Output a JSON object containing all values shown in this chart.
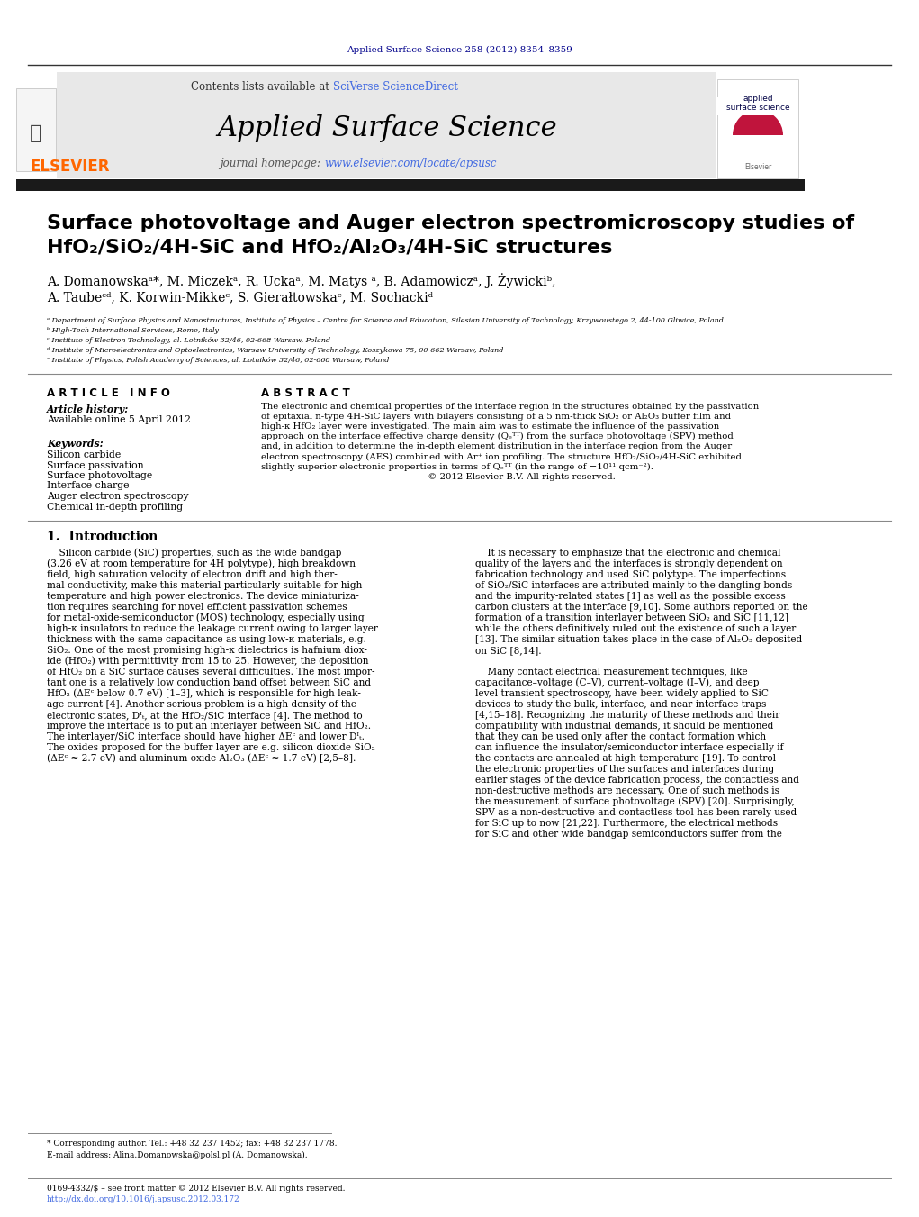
{
  "page_width": 10.21,
  "page_height": 13.51,
  "background_color": "#ffffff",
  "header_top_text": "Applied Surface Science 258 (2012) 8354–8359",
  "header_top_color": "#00008B",
  "journal_header_bg": "#e8e8e8",
  "journal_name": "Applied Surface Science",
  "contents_text": "Contents lists available at SciVerse ScienceDirect",
  "homepage_text": "journal homepage: www.elsevier.com/locate/apsusc",
  "sciverse_color": "#4169E1",
  "homepage_link_color": "#4169E1",
  "elsevier_orange": "#FF6600",
  "dark_bar_color": "#1a1a1a",
  "title_line1": "Surface photovoltage and Auger electron spectromicroscopy studies of",
  "title_line2": "HfO₂/SiO₂/4H-SiC and HfO₂/Al₂O₃/4H-SiC structures",
  "authors": "A. Domanowskaᵃ*, M. Miczekᵃ, R. Uckaᵃ, M. Matys ᵃ, B. Adamowiczᵃ, J. Żywickiᵇ,",
  "authors2": "A. Taubeᶜᵈ, K. Korwin-Mikkeᶜ, S. Gierałtowskaᵉ, M. Sochackiᵈ",
  "affil_a": "ᵃ Department of Surface Physics and Nanostructures, Institute of Physics – Centre for Science and Education, Silesian University of Technology, Krzywoustego 2, 44-100 Gliwice, Poland",
  "affil_b": "ᵇ High-Tech International Services, Rome, Italy",
  "affil_c": "ᶜ Institute of Electron Technology, al. Lotników 32/46, 02-668 Warsaw, Poland",
  "affil_d": "ᵈ Institute of Microelectronics and Optoelectronics, Warsaw University of Technology, Koszykowa 75, 00-662 Warsaw, Poland",
  "affil_e": "ᵉ Institute of Physics, Polish Academy of Sciences, al. Lotników 32/46, 02-668 Warsaw, Poland",
  "article_info_header": "A R T I C L E   I N F O",
  "abstract_header": "A B S T R A C T",
  "article_history_label": "Article history:",
  "article_history_date": "Available online 5 April 2012",
  "keywords_label": "Keywords:",
  "keywords": [
    "Silicon carbide",
    "Surface passivation",
    "Surface photovoltage",
    "Interface charge",
    "Auger electron spectroscopy",
    "Chemical in-depth profiling"
  ],
  "intro_header": "1.  Introduction",
  "footnote_star": "* Corresponding author. Tel.: +48 32 237 1452; fax: +48 32 237 1778.",
  "footnote_email": "E-mail address: Alina.Domanowska@polsl.pl (A. Domanowska).",
  "bottom_text1": "0169-4332/$ – see front matter © 2012 Elsevier B.V. All rights reserved.",
  "bottom_text2": "http://dx.doi.org/10.1016/j.apsusc.2012.03.172",
  "cover_bg_color": "#c0143c"
}
